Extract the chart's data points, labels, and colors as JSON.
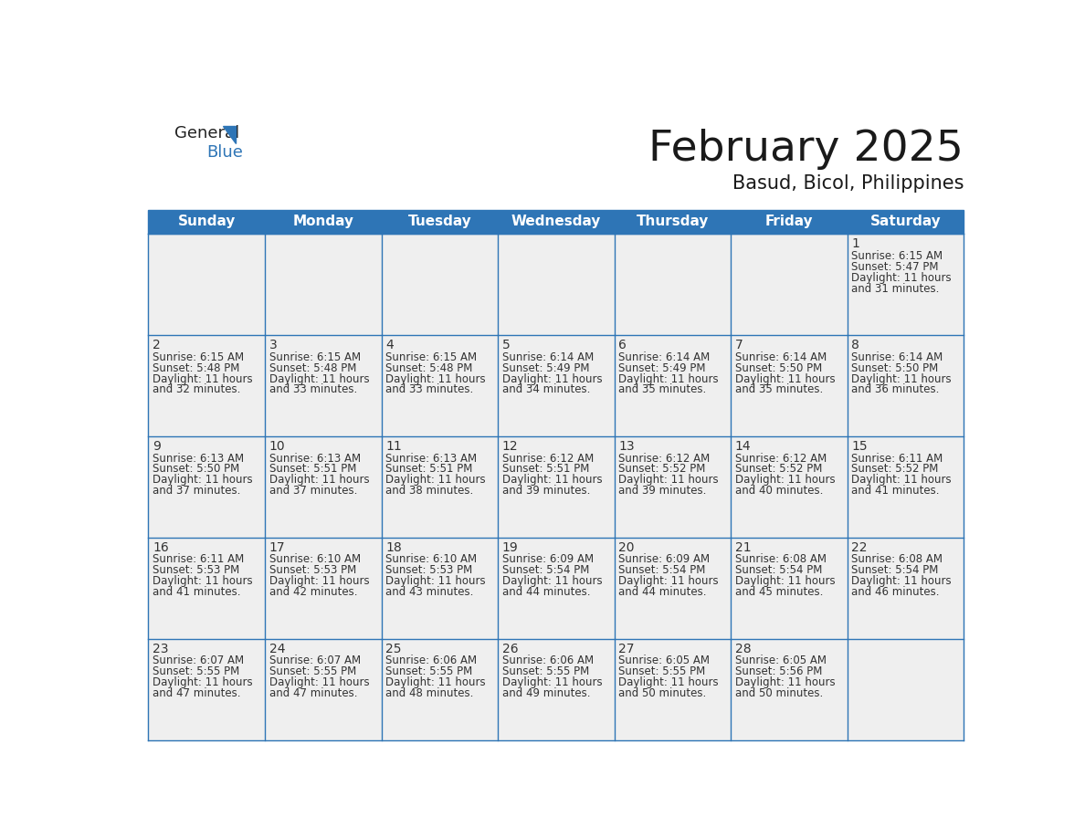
{
  "title": "February 2025",
  "subtitle": "Basud, Bicol, Philippines",
  "days_of_week": [
    "Sunday",
    "Monday",
    "Tuesday",
    "Wednesday",
    "Thursday",
    "Friday",
    "Saturday"
  ],
  "header_bg": "#2E75B6",
  "header_text": "#FFFFFF",
  "cell_bg": "#EFEFEF",
  "cell_white_bg": "#FFFFFF",
  "cell_border": "#2E75B6",
  "day_num_color": "#333333",
  "info_text_color": "#333333",
  "title_color": "#1a1a1a",
  "subtitle_color": "#1a1a1a",
  "calendar": [
    [
      null,
      null,
      null,
      null,
      null,
      null,
      1
    ],
    [
      2,
      3,
      4,
      5,
      6,
      7,
      8
    ],
    [
      9,
      10,
      11,
      12,
      13,
      14,
      15
    ],
    [
      16,
      17,
      18,
      19,
      20,
      21,
      22
    ],
    [
      23,
      24,
      25,
      26,
      27,
      28,
      null
    ]
  ],
  "sun_data": {
    "1": {
      "rise": "6:15 AM",
      "set": "5:47 PM",
      "daylight": "11 hours and 31 minutes."
    },
    "2": {
      "rise": "6:15 AM",
      "set": "5:48 PM",
      "daylight": "11 hours and 32 minutes."
    },
    "3": {
      "rise": "6:15 AM",
      "set": "5:48 PM",
      "daylight": "11 hours and 33 minutes."
    },
    "4": {
      "rise": "6:15 AM",
      "set": "5:48 PM",
      "daylight": "11 hours and 33 minutes."
    },
    "5": {
      "rise": "6:14 AM",
      "set": "5:49 PM",
      "daylight": "11 hours and 34 minutes."
    },
    "6": {
      "rise": "6:14 AM",
      "set": "5:49 PM",
      "daylight": "11 hours and 35 minutes."
    },
    "7": {
      "rise": "6:14 AM",
      "set": "5:50 PM",
      "daylight": "11 hours and 35 minutes."
    },
    "8": {
      "rise": "6:14 AM",
      "set": "5:50 PM",
      "daylight": "11 hours and 36 minutes."
    },
    "9": {
      "rise": "6:13 AM",
      "set": "5:50 PM",
      "daylight": "11 hours and 37 minutes."
    },
    "10": {
      "rise": "6:13 AM",
      "set": "5:51 PM",
      "daylight": "11 hours and 37 minutes."
    },
    "11": {
      "rise": "6:13 AM",
      "set": "5:51 PM",
      "daylight": "11 hours and 38 minutes."
    },
    "12": {
      "rise": "6:12 AM",
      "set": "5:51 PM",
      "daylight": "11 hours and 39 minutes."
    },
    "13": {
      "rise": "6:12 AM",
      "set": "5:52 PM",
      "daylight": "11 hours and 39 minutes."
    },
    "14": {
      "rise": "6:12 AM",
      "set": "5:52 PM",
      "daylight": "11 hours and 40 minutes."
    },
    "15": {
      "rise": "6:11 AM",
      "set": "5:52 PM",
      "daylight": "11 hours and 41 minutes."
    },
    "16": {
      "rise": "6:11 AM",
      "set": "5:53 PM",
      "daylight": "11 hours and 41 minutes."
    },
    "17": {
      "rise": "6:10 AM",
      "set": "5:53 PM",
      "daylight": "11 hours and 42 minutes."
    },
    "18": {
      "rise": "6:10 AM",
      "set": "5:53 PM",
      "daylight": "11 hours and 43 minutes."
    },
    "19": {
      "rise": "6:09 AM",
      "set": "5:54 PM",
      "daylight": "11 hours and 44 minutes."
    },
    "20": {
      "rise": "6:09 AM",
      "set": "5:54 PM",
      "daylight": "11 hours and 44 minutes."
    },
    "21": {
      "rise": "6:08 AM",
      "set": "5:54 PM",
      "daylight": "11 hours and 45 minutes."
    },
    "22": {
      "rise": "6:08 AM",
      "set": "5:54 PM",
      "daylight": "11 hours and 46 minutes."
    },
    "23": {
      "rise": "6:07 AM",
      "set": "5:55 PM",
      "daylight": "11 hours and 47 minutes."
    },
    "24": {
      "rise": "6:07 AM",
      "set": "5:55 PM",
      "daylight": "11 hours and 47 minutes."
    },
    "25": {
      "rise": "6:06 AM",
      "set": "5:55 PM",
      "daylight": "11 hours and 48 minutes."
    },
    "26": {
      "rise": "6:06 AM",
      "set": "5:55 PM",
      "daylight": "11 hours and 49 minutes."
    },
    "27": {
      "rise": "6:05 AM",
      "set": "5:55 PM",
      "daylight": "11 hours and 50 minutes."
    },
    "28": {
      "rise": "6:05 AM",
      "set": "5:56 PM",
      "daylight": "11 hours and 50 minutes."
    }
  },
  "fig_width": 11.88,
  "fig_height": 9.18,
  "dpi": 100
}
